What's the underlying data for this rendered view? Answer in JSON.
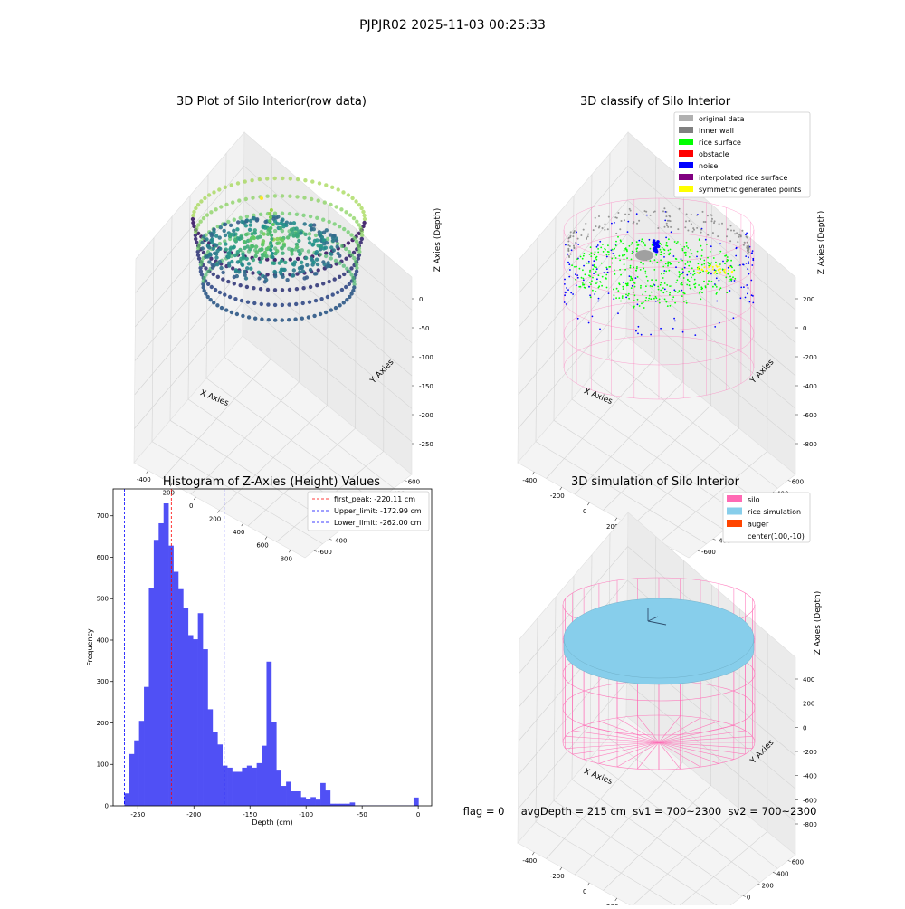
{
  "figure": {
    "suptitle": "PJPJR02 2025-11-03 00:25:33",
    "footer_text": "flag = 0     avgDepth = 215 cm  sv1 = 700~2300  sv2 = 700~2300"
  },
  "colors": {
    "hist_bar": "#5050f5",
    "silo": "#ff69b4",
    "rice_simulation": "#87ceeb",
    "auger": "#ff4500",
    "rice_surface": "#00ff00",
    "noise": "#0000ff",
    "symmetric": "#ffff00",
    "inner_wall": "#808080",
    "original_data": "#b0b0b0",
    "obstacle": "#ff0000",
    "interpolated": "#800080"
  },
  "panels": {
    "raw": {
      "title": "3D Plot of Silo Interior(row data)",
      "xlabel": "X Axies",
      "ylabel": "Y Axies",
      "zlabel": "Z Axies (Depth)",
      "x_ticks": [
        "-400",
        "-200",
        "0",
        "200",
        "400",
        "600",
        "800"
      ],
      "y_ticks": [
        "600",
        "400",
        "200",
        "0",
        "-200",
        "-400",
        "-600"
      ],
      "z_ticks": [
        "0",
        "-50",
        "-100",
        "-150",
        "-200",
        "-250"
      ]
    },
    "classify": {
      "title": "3D classify of Silo Interior",
      "xlabel": "X Axies",
      "ylabel": "Y Axies",
      "zlabel": "Z Axies (Depth)",
      "x_ticks": [
        "-400",
        "-200",
        "0",
        "200",
        "400",
        "600"
      ],
      "y_ticks": [
        "600",
        "400",
        "200",
        "0",
        "-200",
        "-400",
        "-600"
      ],
      "z_ticks": [
        "200",
        "0",
        "-200",
        "-400",
        "-600",
        "-800"
      ],
      "legend": [
        {
          "label": "original data",
          "color": "#b0b0b0"
        },
        {
          "label": "inner wall",
          "color": "#808080"
        },
        {
          "label": "rice surface",
          "color": "#00ff00"
        },
        {
          "label": "obstacle",
          "color": "#ff0000"
        },
        {
          "label": "noise",
          "color": "#0000ff"
        },
        {
          "label": "interpolated rice surface",
          "color": "#800080"
        },
        {
          "label": "symmetric generated points",
          "color": "#ffff00"
        }
      ]
    },
    "simulation": {
      "title": "3D simulation of Silo Interior",
      "xlabel": "X Axies",
      "ylabel": "Y Axies",
      "zlabel": "Z Axies (Depth)",
      "x_ticks": [
        "-400",
        "-200",
        "0",
        "200",
        "400",
        "600"
      ],
      "y_ticks": [
        "600",
        "400",
        "200",
        "0",
        "-200",
        "-400",
        "-600"
      ],
      "z_ticks": [
        "400",
        "200",
        "0",
        "-200",
        "-400",
        "-600",
        "-800"
      ],
      "legend": [
        {
          "label": "silo",
          "color": "#ff69b4"
        },
        {
          "label": "rice simulation",
          "color": "#87ceeb"
        },
        {
          "label": "auger",
          "color": "#ff4500"
        },
        {
          "label": "center(100,-10)",
          "color": ""
        }
      ]
    }
  },
  "chart_data": {
    "type": "bar",
    "title": "Histogram of Z-Axies (Height) Values",
    "xlabel": "Depth (cm)",
    "ylabel": "Frequency",
    "xlim": [
      -272,
      12
    ],
    "ylim": [
      0,
      765
    ],
    "x_ticks": [
      -250,
      -200,
      -150,
      -100,
      -50,
      0
    ],
    "y_ticks": [
      0,
      100,
      200,
      300,
      400,
      500,
      600,
      700
    ],
    "bin_start": -262,
    "bin_width": 4.37,
    "values": [
      30,
      125,
      158,
      205,
      287,
      525,
      642,
      682,
      730,
      628,
      565,
      523,
      478,
      412,
      402,
      465,
      378,
      233,
      178,
      148,
      97,
      92,
      82,
      82,
      92,
      97,
      92,
      103,
      145,
      348,
      202,
      85,
      48,
      58,
      35,
      35,
      21,
      17,
      21,
      15,
      55,
      37,
      5,
      5,
      5,
      5,
      8,
      1,
      1,
      1,
      1,
      1,
      1,
      1,
      1,
      1,
      1,
      1,
      1,
      20
    ],
    "vlines": [
      {
        "label": "first_peak: -220.11 cm",
        "x": -220.11,
        "color": "#ff0000"
      },
      {
        "label": "Upper_limit: -172.99 cm",
        "x": -172.99,
        "color": "#0000ff"
      },
      {
        "label": "Lower_limit: -262.00 cm",
        "x": -262.0,
        "color": "#0000ff"
      }
    ],
    "legend_position": "top-right",
    "grid": false
  }
}
